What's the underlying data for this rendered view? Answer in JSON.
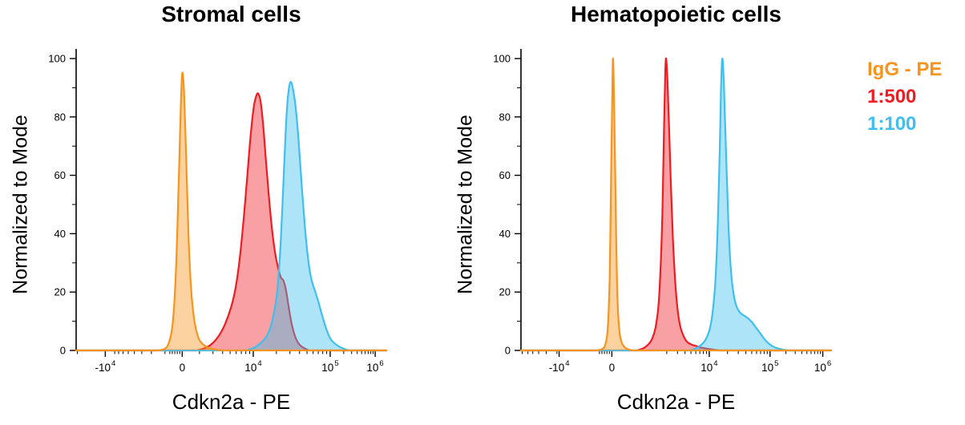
{
  "legend": {
    "items": [
      {
        "label": "IgG - PE",
        "color": "#F7941D"
      },
      {
        "label": "1:500",
        "color": "#EE1D23"
      },
      {
        "label": "1:100",
        "color": "#3FBFEF"
      }
    ]
  },
  "chart_data": [
    {
      "type": "area",
      "subtype": "flow-cytometry-histogram",
      "title": "Stromal cells",
      "xlabel": "Cdkn2a - PE",
      "ylabel": "Normalized to Mode",
      "x_scale": "biexponential",
      "ylim": [
        0,
        100
      ],
      "y_ticks": [
        0,
        20,
        40,
        60,
        80,
        100
      ],
      "x_ticks": [
        {
          "label": "-10",
          "exp": "4",
          "pos": 0.094
        },
        {
          "label": "0",
          "exp": "",
          "pos": 0.342
        },
        {
          "label": "10",
          "exp": "4",
          "pos": 0.571
        },
        {
          "label": "10",
          "exp": "5",
          "pos": 0.819
        },
        {
          "label": "10",
          "exp": "6",
          "pos": 0.964
        }
      ],
      "series": [
        {
          "name": "IgG - PE",
          "color": "#F7941D",
          "peak": {
            "x": "0",
            "y": 95
          },
          "points": [
            [
              0.26,
              0
            ],
            [
              0.285,
              0.5
            ],
            [
              0.3,
              3
            ],
            [
              0.312,
              10
            ],
            [
              0.322,
              28
            ],
            [
              0.33,
              55
            ],
            [
              0.337,
              82
            ],
            [
              0.342,
              95
            ],
            [
              0.348,
              88
            ],
            [
              0.355,
              65
            ],
            [
              0.362,
              40
            ],
            [
              0.37,
              22
            ],
            [
              0.38,
              11
            ],
            [
              0.392,
              5
            ],
            [
              0.405,
              2.5
            ],
            [
              0.425,
              1
            ],
            [
              0.45,
              0.3
            ],
            [
              0.47,
              0
            ]
          ]
        },
        {
          "name": "1:500",
          "color": "#EE1D23",
          "peak": {
            "x": "1e4",
            "y": 88
          },
          "points": [
            [
              0.39,
              0
            ],
            [
              0.42,
              1
            ],
            [
              0.44,
              2.5
            ],
            [
              0.46,
              5
            ],
            [
              0.48,
              9
            ],
            [
              0.5,
              15
            ],
            [
              0.515,
              22
            ],
            [
              0.528,
              32
            ],
            [
              0.54,
              45
            ],
            [
              0.552,
              60
            ],
            [
              0.562,
              73
            ],
            [
              0.572,
              83
            ],
            [
              0.58,
              87
            ],
            [
              0.587,
              88
            ],
            [
              0.595,
              85
            ],
            [
              0.603,
              77
            ],
            [
              0.612,
              65
            ],
            [
              0.622,
              52
            ],
            [
              0.632,
              41
            ],
            [
              0.642,
              33
            ],
            [
              0.652,
              28
            ],
            [
              0.66,
              25
            ],
            [
              0.668,
              24
            ],
            [
              0.676,
              21
            ],
            [
              0.685,
              15
            ],
            [
              0.695,
              9
            ],
            [
              0.707,
              4.5
            ],
            [
              0.72,
              2
            ],
            [
              0.735,
              0.8
            ],
            [
              0.75,
              0
            ]
          ]
        },
        {
          "name": "1:100",
          "color": "#3FBFEF",
          "peak": {
            "x": "3e4",
            "y": 92
          },
          "points": [
            [
              0.55,
              0
            ],
            [
              0.575,
              1
            ],
            [
              0.595,
              2.5
            ],
            [
              0.615,
              5
            ],
            [
              0.632,
              10
            ],
            [
              0.648,
              20
            ],
            [
              0.66,
              38
            ],
            [
              0.67,
              62
            ],
            [
              0.678,
              80
            ],
            [
              0.685,
              89
            ],
            [
              0.692,
              92
            ],
            [
              0.7,
              89
            ],
            [
              0.708,
              83
            ],
            [
              0.717,
              72
            ],
            [
              0.727,
              57
            ],
            [
              0.737,
              43
            ],
            [
              0.747,
              32
            ],
            [
              0.757,
              25
            ],
            [
              0.768,
              21
            ],
            [
              0.78,
              17
            ],
            [
              0.793,
              12
            ],
            [
              0.806,
              7.5
            ],
            [
              0.82,
              4
            ],
            [
              0.838,
              2
            ],
            [
              0.858,
              0.8
            ],
            [
              0.88,
              0
            ]
          ]
        }
      ]
    },
    {
      "type": "area",
      "subtype": "flow-cytometry-histogram",
      "title": "Hematopoietic cells",
      "xlabel": "Cdkn2a - PE",
      "ylabel": "Normalized to Mode",
      "x_scale": "biexponential",
      "ylim": [
        0,
        100
      ],
      "y_ticks": [
        0,
        20,
        40,
        60,
        80,
        100
      ],
      "x_ticks": [
        {
          "label": "-10",
          "exp": "4",
          "pos": 0.123
        },
        {
          "label": "0",
          "exp": "",
          "pos": 0.293
        },
        {
          "label": "10",
          "exp": "4",
          "pos": 0.607
        },
        {
          "label": "10",
          "exp": "5",
          "pos": 0.803
        },
        {
          "label": "10",
          "exp": "6",
          "pos": 0.973
        }
      ],
      "series": [
        {
          "name": "IgG - PE",
          "color": "#F7941D",
          "peak": {
            "x": "0",
            "y": 100
          },
          "points": [
            [
              0.245,
              0
            ],
            [
              0.262,
              0.5
            ],
            [
              0.272,
              2
            ],
            [
              0.28,
              8
            ],
            [
              0.286,
              25
            ],
            [
              0.29,
              55
            ],
            [
              0.294,
              85
            ],
            [
              0.297,
              100
            ],
            [
              0.301,
              80
            ],
            [
              0.306,
              45
            ],
            [
              0.311,
              18
            ],
            [
              0.317,
              7
            ],
            [
              0.324,
              3
            ],
            [
              0.333,
              1.2
            ],
            [
              0.345,
              0.4
            ],
            [
              0.36,
              0
            ]
          ]
        },
        {
          "name": "1:500",
          "color": "#EE1D23",
          "peak": {
            "x": "5e3",
            "y": 100
          },
          "points": [
            [
              0.375,
              0
            ],
            [
              0.395,
              0.8
            ],
            [
              0.41,
              2
            ],
            [
              0.423,
              4
            ],
            [
              0.434,
              8
            ],
            [
              0.443,
              15
            ],
            [
              0.45,
              28
            ],
            [
              0.456,
              48
            ],
            [
              0.461,
              75
            ],
            [
              0.465,
              95
            ],
            [
              0.468,
              100
            ],
            [
              0.472,
              93
            ],
            [
              0.477,
              78
            ],
            [
              0.483,
              58
            ],
            [
              0.49,
              38
            ],
            [
              0.497,
              24
            ],
            [
              0.505,
              14
            ],
            [
              0.514,
              8
            ],
            [
              0.524,
              5
            ],
            [
              0.535,
              3
            ],
            [
              0.55,
              2
            ],
            [
              0.565,
              1.5
            ],
            [
              0.58,
              1
            ],
            [
              0.6,
              0.6
            ],
            [
              0.62,
              0.3
            ],
            [
              0.64,
              0
            ]
          ]
        },
        {
          "name": "1:100",
          "color": "#3FBFEF",
          "peak": {
            "x": "1.5e4",
            "y": 100
          },
          "points": [
            [
              0.545,
              0
            ],
            [
              0.565,
              0.8
            ],
            [
              0.582,
              2
            ],
            [
              0.597,
              4
            ],
            [
              0.61,
              8
            ],
            [
              0.62,
              15
            ],
            [
              0.628,
              26
            ],
            [
              0.635,
              45
            ],
            [
              0.641,
              70
            ],
            [
              0.645,
              90
            ],
            [
              0.649,
              100
            ],
            [
              0.654,
              92
            ],
            [
              0.659,
              75
            ],
            [
              0.665,
              55
            ],
            [
              0.671,
              38
            ],
            [
              0.678,
              26
            ],
            [
              0.686,
              19
            ],
            [
              0.695,
              15
            ],
            [
              0.706,
              13
            ],
            [
              0.718,
              12
            ],
            [
              0.732,
              11
            ],
            [
              0.746,
              9.5
            ],
            [
              0.76,
              7.5
            ],
            [
              0.774,
              5.5
            ],
            [
              0.788,
              3.5
            ],
            [
              0.803,
              2
            ],
            [
              0.82,
              1
            ],
            [
              0.84,
              0.4
            ],
            [
              0.86,
              0
            ]
          ]
        }
      ]
    }
  ]
}
